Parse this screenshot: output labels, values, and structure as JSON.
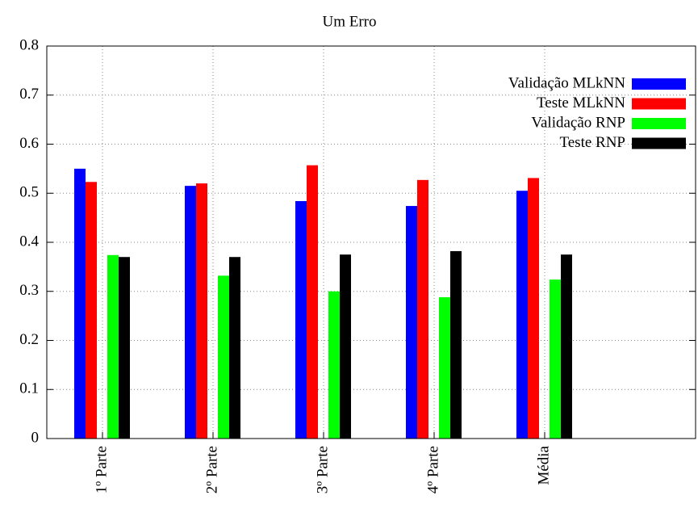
{
  "chart_data": {
    "type": "bar",
    "title": "Um Erro",
    "categories": [
      "1º Parte",
      "2º Parte",
      "3º Parte",
      "4º Parte",
      "Média"
    ],
    "series": [
      {
        "name": "Validação MLkNN",
        "color": "#0000ff",
        "values": [
          0.55,
          0.515,
          0.484,
          0.474,
          0.505
        ]
      },
      {
        "name": "Teste MLkNN",
        "color": "#ff0000",
        "values": [
          0.523,
          0.52,
          0.557,
          0.527,
          0.531
        ]
      },
      {
        "name": "Validação RNP",
        "color": "#00ff00",
        "values": [
          0.374,
          0.332,
          0.3,
          0.288,
          0.324
        ]
      },
      {
        "name": "Teste RNP",
        "color": "#000000",
        "values": [
          0.37,
          0.37,
          0.375,
          0.382,
          0.375
        ]
      }
    ],
    "ylim": [
      0,
      0.8
    ],
    "yticks": [
      0,
      0.1,
      0.2,
      0.3,
      0.4,
      0.5,
      0.6,
      0.7,
      0.8
    ],
    "grid": true,
    "legend": "upper right"
  }
}
